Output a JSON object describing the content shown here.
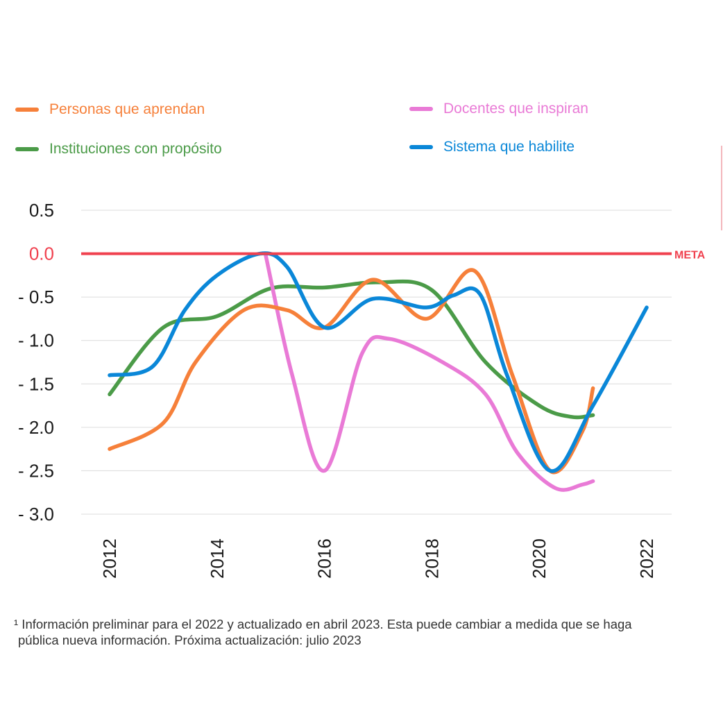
{
  "legend": [
    {
      "label": "Personas que aprendan",
      "color": "#f6803a"
    },
    {
      "label": "Instituciones con propósito",
      "color": "#4b9b48"
    },
    {
      "label": "Docentes que inspiran",
      "color": "#e97ad6"
    },
    {
      "label": "Sistema que habilite",
      "color": "#0a87d8"
    }
  ],
  "footnote": {
    "line1": "¹ Información preliminar para el 2022 y actualizado en abril 2023. Esta puede cambiar a medida que se haga",
    "line2": "pública nueva información. Próxima actualización: julio 2023"
  },
  "chart_data": {
    "type": "line",
    "ylim": [
      -3.0,
      0.5
    ],
    "xlim": [
      2012,
      2022
    ],
    "yticks": [
      0.5,
      0.0,
      -0.5,
      -1.0,
      -1.5,
      -2.0,
      -2.5,
      -3.0
    ],
    "ytick_labels": [
      "0.5",
      "0.0",
      "- 0.5",
      "- 1.0",
      "- 1.5",
      "- 2.0",
      "- 2.5",
      "- 3.0"
    ],
    "xticks": [
      2012,
      2014,
      2016,
      2018,
      2020,
      2022
    ],
    "xtick_labels": [
      "2012",
      "2014",
      "2016",
      "2018",
      "2020",
      "2022"
    ],
    "grid": true,
    "reference_line": {
      "value": 0.0,
      "label": "META",
      "color": "#f0414f"
    },
    "series": [
      {
        "name": "Personas que aprendan",
        "color": "#f6803a",
        "x": [
          2012,
          2013,
          2013.6,
          2014.5,
          2015.3,
          2016,
          2016.9,
          2017.9,
          2018.8,
          2019.5,
          2020.2,
          2020.8,
          2021
        ],
        "y": [
          -2.25,
          -1.95,
          -1.25,
          -0.65,
          -0.65,
          -0.85,
          -0.3,
          -0.75,
          -0.2,
          -1.4,
          -2.5,
          -2.05,
          -1.55
        ]
      },
      {
        "name": "Instituciones con propósito",
        "color": "#4b9b48",
        "x": [
          2012,
          2013,
          2014,
          2015,
          2016,
          2017,
          2018,
          2019,
          2020,
          2020.6,
          2021
        ],
        "y": [
          -1.62,
          -0.85,
          -0.72,
          -0.4,
          -0.39,
          -0.33,
          -0.42,
          -1.25,
          -1.75,
          -1.88,
          -1.86
        ]
      },
      {
        "name": "Docentes que inspiran",
        "color": "#e97ad6",
        "x": [
          2014.9,
          2015.4,
          2016,
          2016.7,
          2017.2,
          2018.2,
          2019,
          2019.6,
          2020.3,
          2020.8,
          2021
        ],
        "y": [
          0.0,
          -1.4,
          -2.5,
          -1.15,
          -0.98,
          -1.25,
          -1.62,
          -2.3,
          -2.7,
          -2.66,
          -2.62
        ]
      },
      {
        "name": "Sistema que habilite",
        "color": "#0a87d8",
        "x": [
          2012,
          2012.8,
          2013.4,
          2014,
          2014.8,
          2015.3,
          2016,
          2016.9,
          2017.9,
          2018.4,
          2018.9,
          2019.4,
          2020.2,
          2021,
          2022
        ],
        "y": [
          -1.4,
          -1.3,
          -0.65,
          -0.25,
          0.0,
          -0.15,
          -0.85,
          -0.52,
          -0.62,
          -0.48,
          -0.47,
          -1.4,
          -2.5,
          -1.75,
          -0.62
        ]
      }
    ]
  }
}
